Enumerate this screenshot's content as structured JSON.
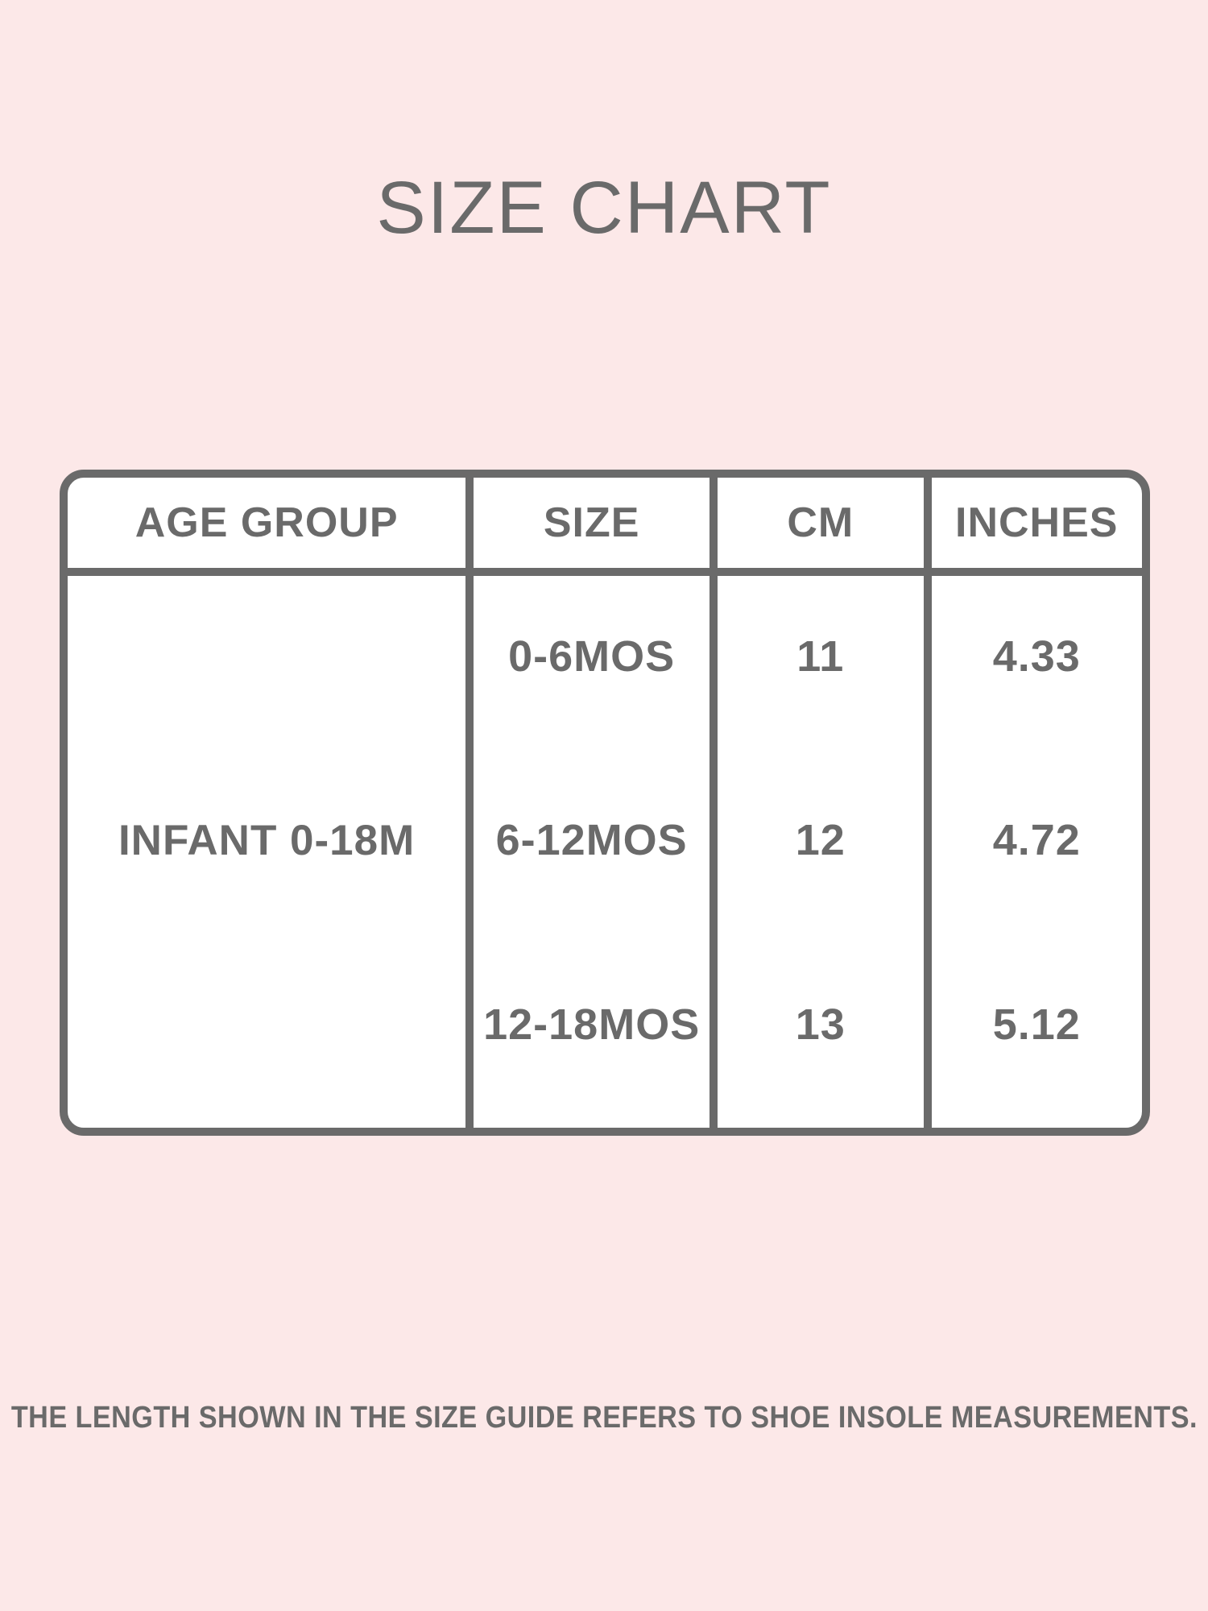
{
  "page": {
    "title": "SIZE CHART",
    "footer_note": "THE LENGTH SHOWN IN THE SIZE GUIDE REFERS TO SHOE INSOLE MEASUREMENTS."
  },
  "colors": {
    "background": "#FCE8E8",
    "table_background": "#FFFFFF",
    "border": "#6A6A6A",
    "text": "#6A6A6A"
  },
  "size_chart": {
    "columns": [
      "AGE GROUP",
      "SIZE",
      "CM",
      "INCHES"
    ],
    "age_group": "INFANT 0-18M",
    "rows": [
      {
        "size": "0-6MOS",
        "cm": "11",
        "inches": "4.33"
      },
      {
        "size": "6-12MOS",
        "cm": "12",
        "inches": "4.72"
      },
      {
        "size": "12-18MOS",
        "cm": "13",
        "inches": "5.12"
      }
    ]
  },
  "chart_data": {
    "type": "table",
    "title": "SIZE CHART",
    "columns": [
      "AGE GROUP",
      "SIZE",
      "CM",
      "INCHES"
    ],
    "rows": [
      [
        "INFANT 0-18M",
        "0-6MOS",
        11,
        4.33
      ],
      [
        "INFANT 0-18M",
        "6-12MOS",
        12,
        4.72
      ],
      [
        "INFANT 0-18M",
        "12-18MOS",
        13,
        5.12
      ]
    ],
    "footnote": "THE LENGTH SHOWN IN THE SIZE GUIDE REFERS TO SHOE INSOLE MEASUREMENTS."
  }
}
